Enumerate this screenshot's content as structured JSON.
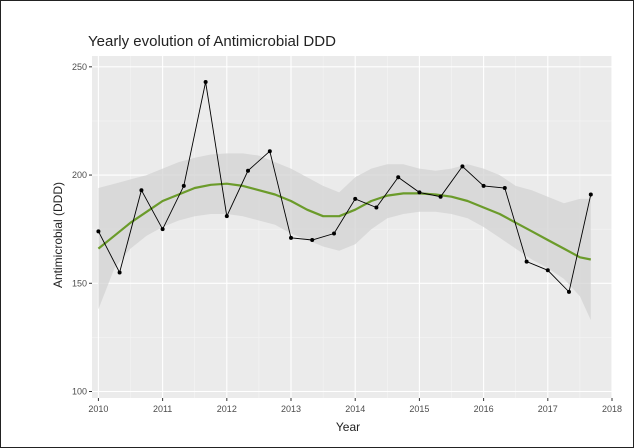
{
  "colors": {
    "panel": "#ebebeb",
    "grid_major": "#ffffff",
    "grid_minor": "#f5f5f5",
    "ribbon": "#d3d3d3",
    "smooth": "#6b9b2a",
    "series": "#000000"
  },
  "chart_data": {
    "type": "line",
    "title": "Yearly evolution of Antimicrobial DDD",
    "xlabel": "Year",
    "ylabel": "Antimicrobial (DDD)",
    "xlim": [
      2009.9,
      2018
    ],
    "ylim": [
      97,
      255
    ],
    "grid": true,
    "x_ticks": [
      2010,
      2011,
      2012,
      2013,
      2014,
      2015,
      2016,
      2017,
      2018
    ],
    "x_tick_labels": [
      "2010",
      "2011",
      "2012",
      "2013",
      "2014",
      "2015",
      "2016",
      "2017",
      "2018"
    ],
    "y_ticks": [
      100,
      150,
      200,
      250
    ],
    "y_tick_labels": [
      "100",
      "150",
      "200",
      "250"
    ],
    "series": [
      {
        "kind": "observed",
        "x": [
          2010.0,
          2010.33,
          2010.67,
          2011.0,
          2011.33,
          2011.67,
          2012.0,
          2012.33,
          2012.67,
          2013.0,
          2013.33,
          2013.67,
          2014.0,
          2014.33,
          2014.67,
          2015.0,
          2015.33,
          2015.67,
          2016.0,
          2016.33,
          2016.67,
          2017.0,
          2017.33,
          2017.67
        ],
        "values": [
          174,
          155,
          193,
          175,
          195,
          243,
          181,
          202,
          211,
          171,
          170,
          173,
          189,
          185,
          199,
          192,
          190,
          204,
          195,
          194,
          160,
          156,
          146,
          191
        ]
      },
      {
        "kind": "loess-smooth",
        "x": [
          2010.0,
          2010.25,
          2010.5,
          2010.75,
          2011.0,
          2011.25,
          2011.5,
          2011.75,
          2012.0,
          2012.25,
          2012.5,
          2012.75,
          2013.0,
          2013.25,
          2013.5,
          2013.75,
          2014.0,
          2014.25,
          2014.5,
          2014.75,
          2015.0,
          2015.25,
          2015.5,
          2015.75,
          2016.0,
          2016.25,
          2016.5,
          2016.75,
          2017.0,
          2017.25,
          2017.5,
          2017.67
        ],
        "values": [
          166,
          172,
          178,
          183,
          188,
          191,
          194,
          195.5,
          196,
          195,
          193,
          191,
          188,
          184,
          181,
          181,
          184,
          188,
          190.5,
          191.5,
          191.5,
          191,
          190,
          188,
          185,
          182,
          178,
          174,
          170,
          166,
          162,
          161
        ],
        "lower": [
          138,
          157,
          166,
          172,
          176,
          179,
          181,
          182,
          182,
          181,
          179,
          177,
          173,
          170,
          167,
          165,
          168,
          175,
          180,
          182,
          183,
          183,
          182,
          180,
          176,
          171,
          166,
          161,
          157,
          152,
          144,
          133
        ],
        "upper": [
          194,
          196,
          198,
          200,
          203,
          206,
          208,
          209.5,
          210,
          210,
          209,
          206,
          203,
          199,
          195,
          192,
          199,
          203,
          205,
          205,
          203,
          202,
          203,
          205,
          203,
          200,
          195,
          193,
          190,
          187,
          189,
          189
        ]
      }
    ]
  }
}
